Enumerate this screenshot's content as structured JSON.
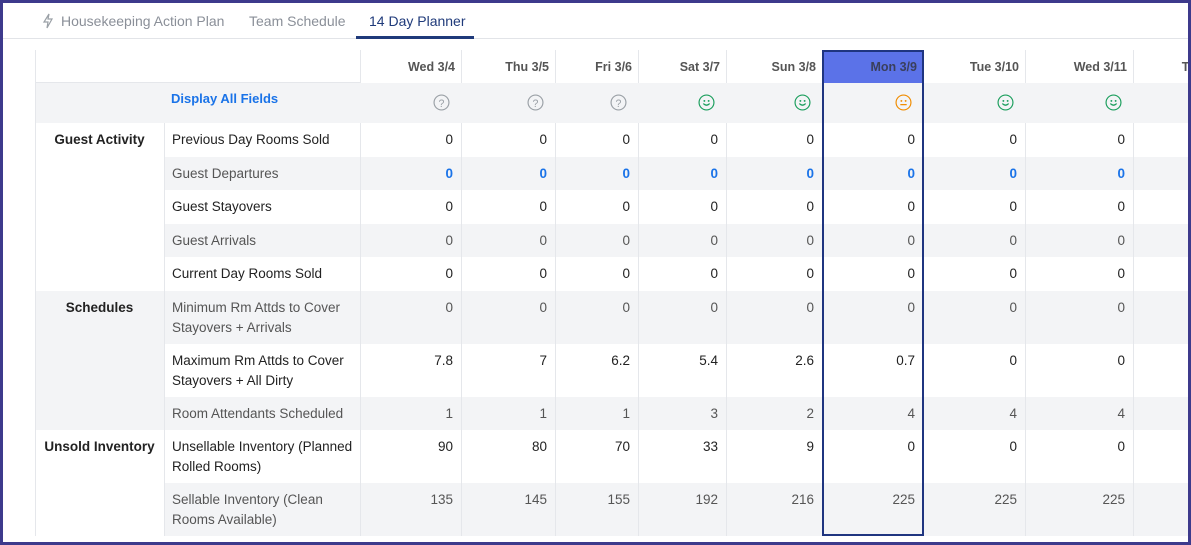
{
  "tabs": [
    "Housekeeping Action Plan",
    "Team Schedule",
    "14 Day Planner"
  ],
  "table": {
    "columns": [
      "Wed 3/4",
      "Thu 3/5",
      "Fri 3/6",
      "Sat 3/7",
      "Sun 3/8",
      "Mon 3/9",
      "Tue 3/10",
      "Wed 3/11",
      "Th"
    ],
    "display_all": "Display All Fields",
    "groups": [
      {
        "name": "Guest Activity",
        "rows": [
          {
            "label": "Previous Day Rooms Sold",
            "values": [
              "0",
              "0",
              "0",
              "0",
              "0",
              "0",
              "0",
              "0"
            ]
          },
          {
            "label": "Guest Departures",
            "values": [
              "0",
              "0",
              "0",
              "0",
              "0",
              "0",
              "0",
              "0"
            ]
          },
          {
            "label": "Guest Stayovers",
            "values": [
              "0",
              "0",
              "0",
              "0",
              "0",
              "0",
              "0",
              "0"
            ]
          },
          {
            "label": "Guest Arrivals",
            "values": [
              "0",
              "0",
              "0",
              "0",
              "0",
              "0",
              "0",
              "0"
            ]
          },
          {
            "label": "Current Day Rooms Sold",
            "values": [
              "0",
              "0",
              "0",
              "0",
              "0",
              "0",
              "0",
              "0"
            ]
          }
        ]
      },
      {
        "name": "Schedules",
        "rows": [
          {
            "label": "Minimum Rm Attds to Cover Stayovers + Arrivals",
            "values": [
              "0",
              "0",
              "0",
              "0",
              "0",
              "0",
              "0",
              "0"
            ]
          },
          {
            "label": "Maximum Rm Attds to Cover Stayovers + All Dirty",
            "values": [
              "7.8",
              "7",
              "6.2",
              "5.4",
              "2.6",
              "0.7",
              "0",
              "0"
            ]
          },
          {
            "label": "Room Attendants Scheduled",
            "values": [
              "1",
              "1",
              "1",
              "3",
              "2",
              "4",
              "4",
              "4"
            ]
          }
        ]
      },
      {
        "name": "Unsold Inventory",
        "rows": [
          {
            "label": "Unsellable Inventory (Planned Rolled Rooms)",
            "values": [
              "90",
              "80",
              "70",
              "33",
              "9",
              "0",
              "0",
              "0"
            ]
          },
          {
            "label": "Sellable Inventory (Clean Rooms Available)",
            "values": [
              "135",
              "145",
              "155",
              "192",
              "216",
              "225",
              "225",
              "225"
            ]
          }
        ]
      }
    ]
  }
}
